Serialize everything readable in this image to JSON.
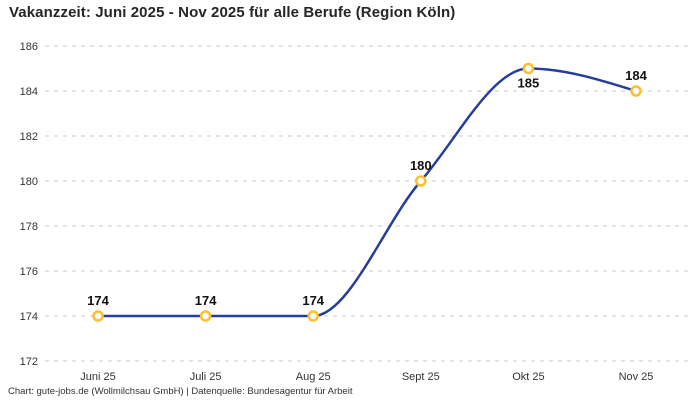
{
  "header": {
    "title": "Vakanzzeit: Juni 2025 - Nov 2025 für alle Berufe (Region Köln)"
  },
  "footer": {
    "attribution": "Chart: gute-jobs.de (Wollmilchsau GmbH) | Datenquelle: Bundesagentur für Arbeit"
  },
  "chart_data": {
    "type": "line",
    "title": "Vakanzzeit: Juni 2025 - Nov 2025 für alle Berufe (Region Köln)",
    "source": "Chart: gute-jobs.de (Wollmilchsau GmbH) | Datenquelle: Bundesagentur für Arbeit",
    "categories": [
      "Juni 25",
      "Juli 25",
      "Aug 25",
      "Sept 25",
      "Okt 25",
      "Nov 25"
    ],
    "series": [
      {
        "name": "Vakanzzeit",
        "values": [
          174,
          174,
          174,
          180,
          185,
          184
        ]
      }
    ],
    "value_labels": [
      "174",
      "174",
      "174",
      "180",
      "185",
      "184"
    ],
    "label_positions": [
      "above",
      "above",
      "above",
      "above",
      "below",
      "above"
    ],
    "xlabel": "",
    "ylabel": "",
    "ylim": [
      172,
      186
    ],
    "yticks": [
      172,
      174,
      176,
      178,
      180,
      182,
      184,
      186
    ],
    "grid": "horizontal-dashed",
    "legend": "none",
    "curve": "monotone",
    "colors": {
      "line": "#253d9c",
      "marker_stroke": "#fcbf2e",
      "marker_fill": "#ffffff",
      "grid": "#c9c9c9",
      "tick_text": "#333333",
      "value_text": "#111111"
    }
  }
}
